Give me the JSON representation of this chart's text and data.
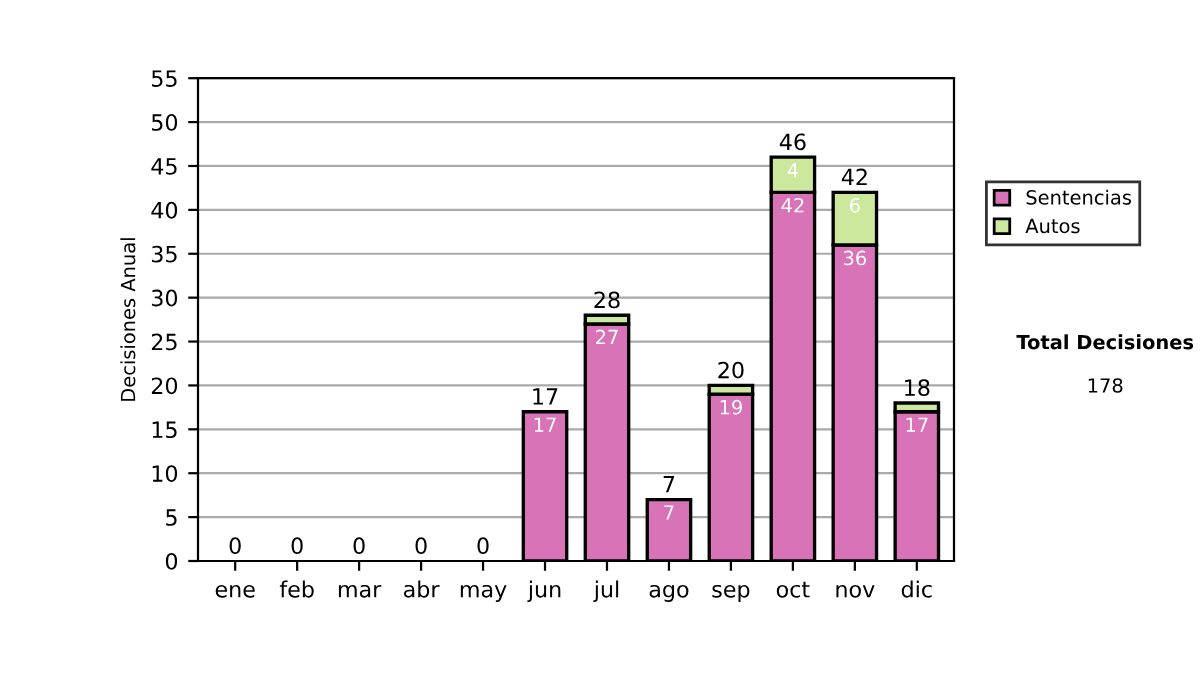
{
  "chart_data": {
    "type": "bar",
    "stacked": true,
    "ylabel": "Decisiones Anual",
    "categories": [
      "ene",
      "feb",
      "mar",
      "abr",
      "may",
      "jun",
      "jul",
      "ago",
      "sep",
      "oct",
      "nov",
      "dic"
    ],
    "series": [
      {
        "name": "Sentencias",
        "color": "#d873b8",
        "values": [
          0,
          0,
          0,
          0,
          0,
          17,
          27,
          7,
          19,
          42,
          36,
          17
        ],
        "value_labels": [
          null,
          null,
          null,
          null,
          null,
          "17",
          "27",
          "7",
          "19",
          "42",
          "36",
          "17"
        ]
      },
      {
        "name": "Autos",
        "color": "#cce89c",
        "values": [
          0,
          0,
          0,
          0,
          0,
          0,
          1,
          0,
          1,
          4,
          6,
          1
        ],
        "value_labels": [
          null,
          null,
          null,
          null,
          null,
          null,
          null,
          null,
          null,
          "4",
          "6",
          null
        ]
      }
    ],
    "totals": [
      "0",
      "0",
      "0",
      "0",
      "0",
      "17",
      "28",
      "7",
      "20",
      "46",
      "42",
      "18"
    ],
    "ylim": [
      0,
      55
    ],
    "yticks": [
      0,
      5,
      10,
      15,
      20,
      25,
      30,
      35,
      40,
      45,
      50,
      55
    ],
    "grid": "y",
    "legend": "right",
    "annotations": [
      "Total Decisiones",
      "178"
    ]
  }
}
